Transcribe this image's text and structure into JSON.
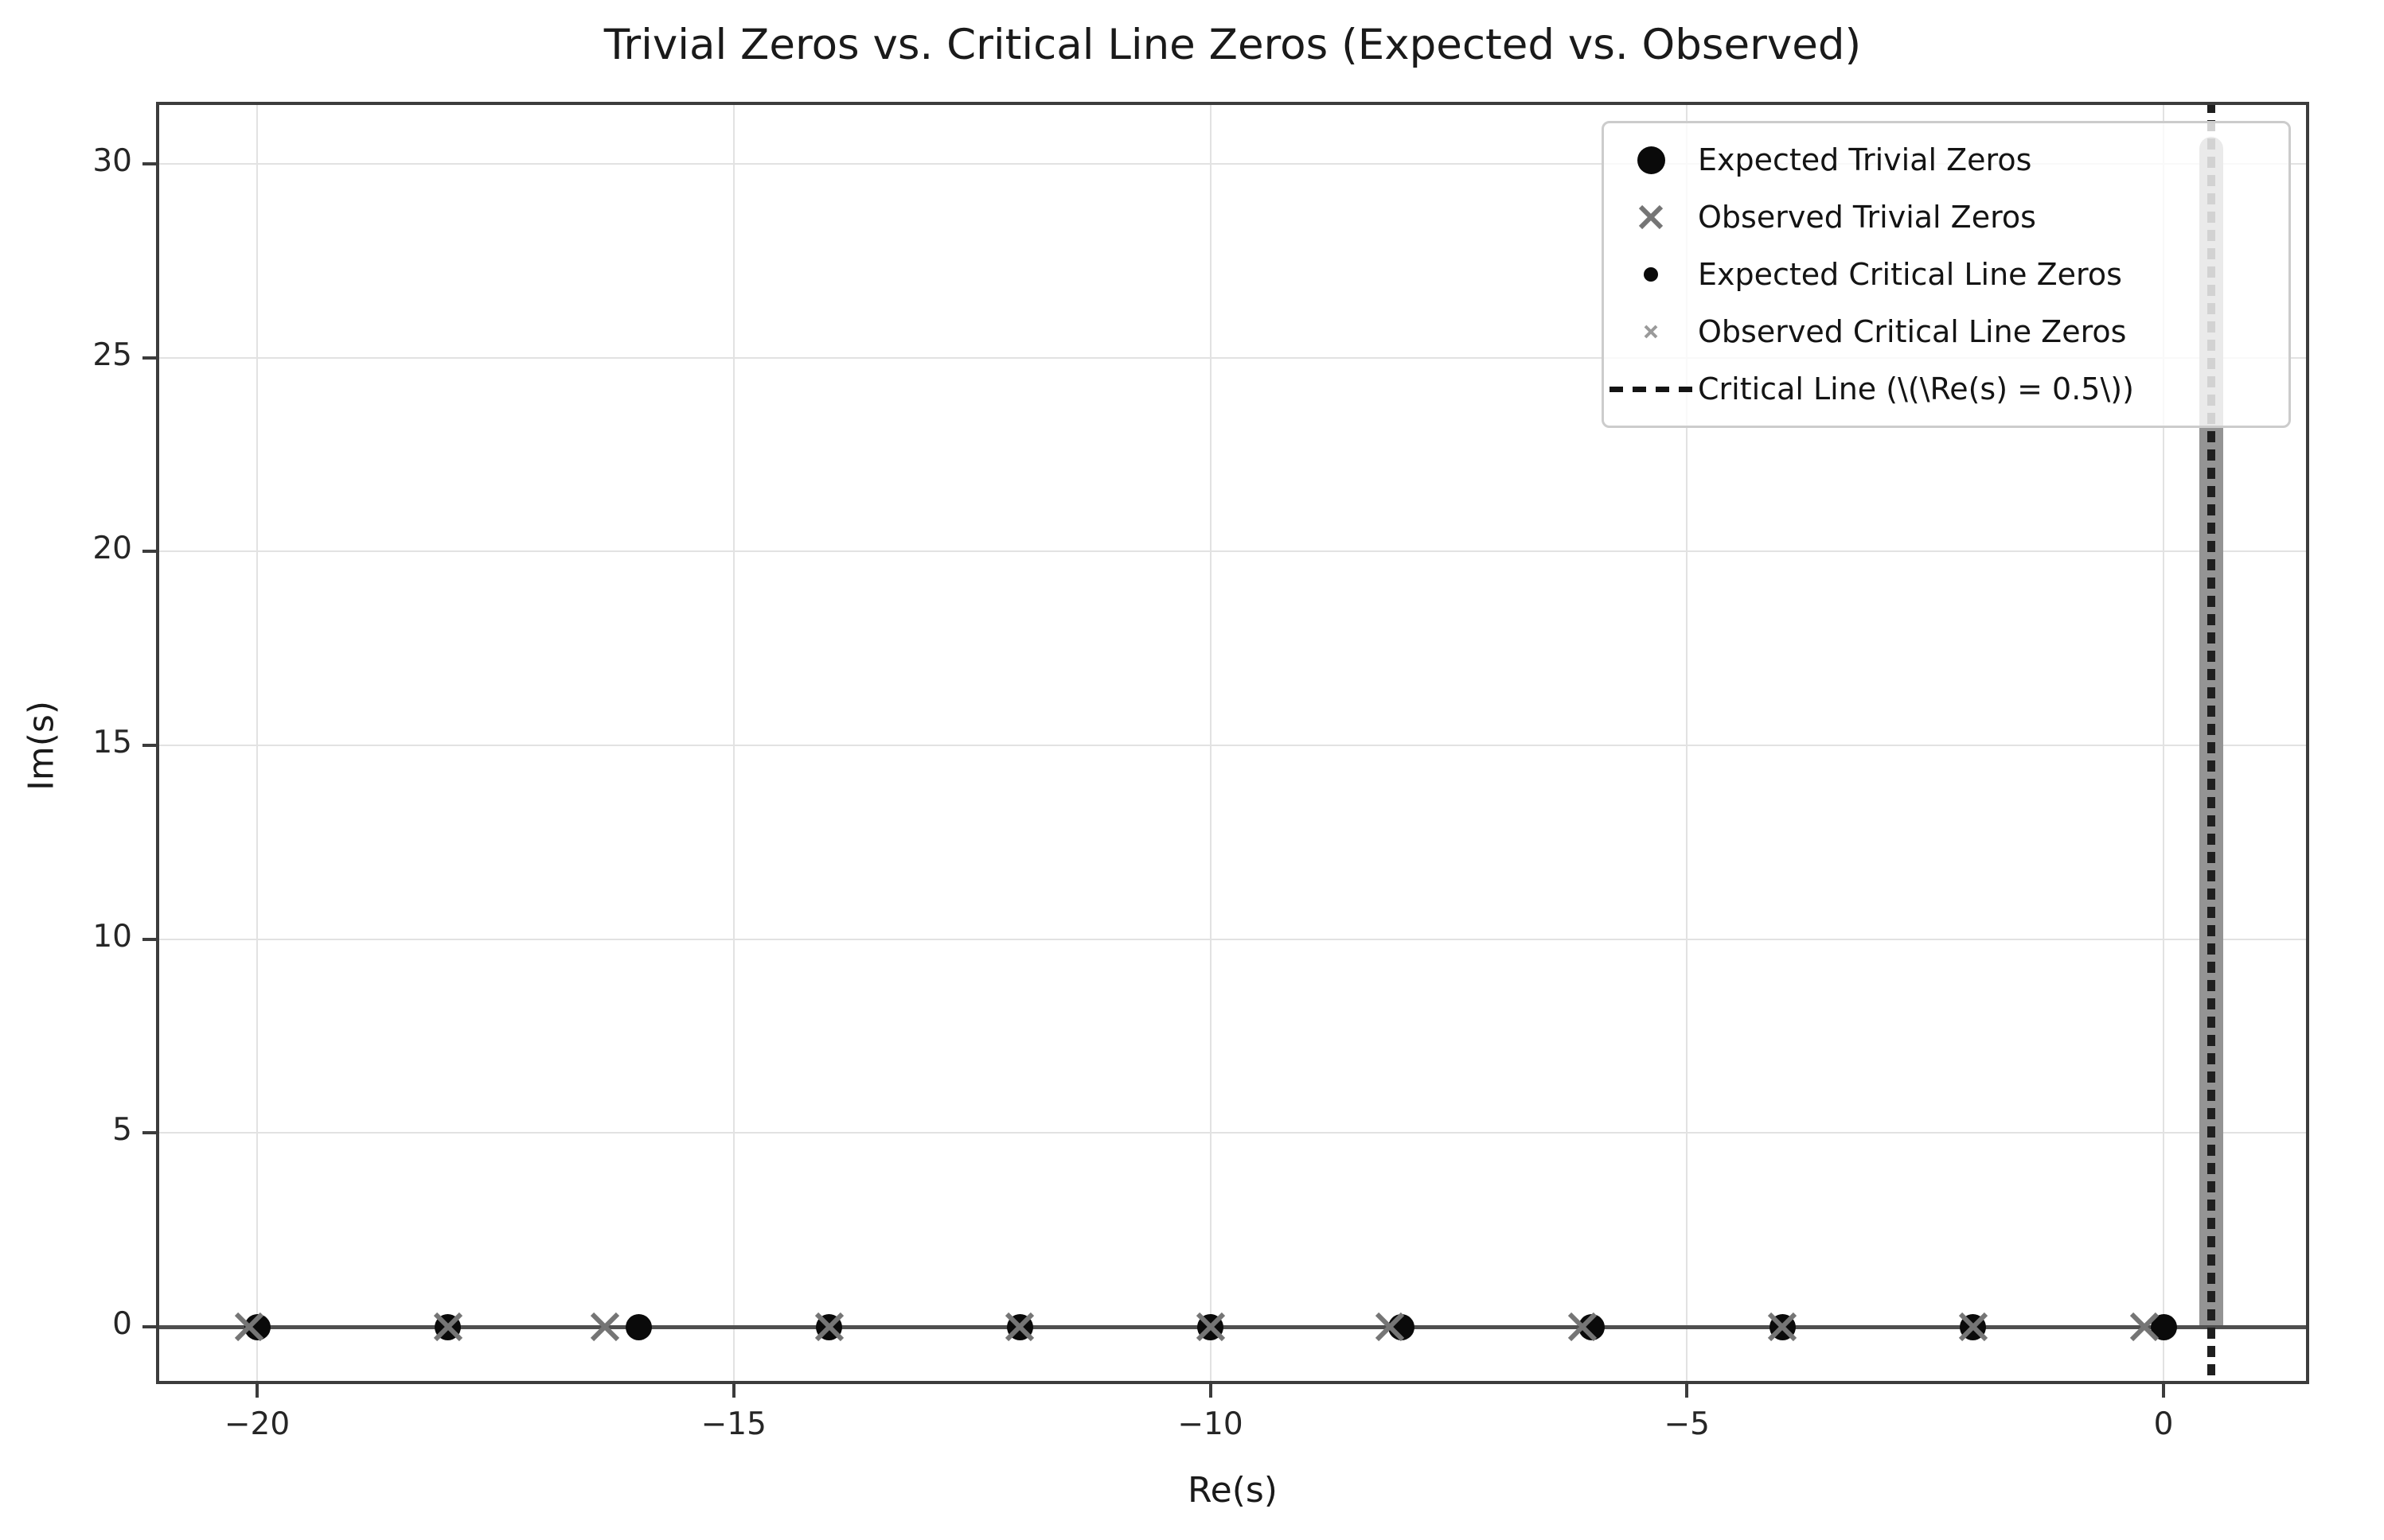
{
  "figure": {
    "title": "Trivial Zeros vs. Critical Line Zeros (Expected vs. Observed)",
    "xlabel": "Re(s)",
    "ylabel": "Im(s)"
  },
  "legend": {
    "items": [
      {
        "label": "Expected Trivial Zeros",
        "marker": "large-black-circle"
      },
      {
        "label": "Observed Trivial Zeros",
        "marker": "gray-x"
      },
      {
        "label": "Expected Critical Line Zeros",
        "marker": "small-black-dot"
      },
      {
        "label": "Observed Critical Line Zeros",
        "marker": "small-gray-x"
      },
      {
        "label": "Critical Line (\\(\\Re(s) = 0.5\\))",
        "marker": "black-dashed-line"
      }
    ]
  },
  "colors": {
    "background": "#ffffff",
    "text": "#1a1a1a",
    "spine": "#3c3c3c",
    "grid": "#e2e2e2",
    "zero_line": "#4f4f4f",
    "expected_marker": "#0a0a0a",
    "observed_marker": "#757575",
    "observed_small_marker": "#9a9a9a",
    "critical_band": "#949494",
    "critical_dash": "#1f1f1f",
    "legend_border": "#cccccc"
  },
  "chart_data": {
    "type": "scatter",
    "title": "Trivial Zeros vs. Critical Line Zeros (Expected vs. Observed)",
    "xlabel": "Re(s)",
    "ylabel": "Im(s)",
    "xlim": [
      -21.05,
      1.53
    ],
    "ylim": [
      -1.5,
      31.66
    ],
    "xticks": [
      -20,
      -15,
      -10,
      -5,
      0
    ],
    "yticks": [
      0,
      5,
      10,
      15,
      20,
      25,
      30
    ],
    "grid": true,
    "legend_position": "upper right",
    "series": [
      {
        "name": "Expected Trivial Zeros",
        "marker": "circle",
        "size": 33,
        "points": [
          [
            0,
            0
          ],
          [
            -2,
            0
          ],
          [
            -4,
            0
          ],
          [
            -6,
            0
          ],
          [
            -8,
            0
          ],
          [
            -10,
            0
          ],
          [
            -12,
            0
          ],
          [
            -14,
            0
          ],
          [
            -16,
            0
          ],
          [
            -18,
            0
          ],
          [
            -20,
            0
          ]
        ]
      },
      {
        "name": "Observed Trivial Zeros",
        "marker": "x",
        "size": 34,
        "points": [
          [
            -0.2,
            0
          ],
          [
            -2,
            0
          ],
          [
            -4,
            0
          ],
          [
            -6.1,
            0
          ],
          [
            -8.12,
            0
          ],
          [
            -10,
            0
          ],
          [
            -12,
            0
          ],
          [
            -14,
            0
          ],
          [
            -16.35,
            0
          ],
          [
            -18,
            0
          ],
          [
            -20.08,
            0
          ]
        ]
      },
      {
        "name": "Expected Critical Line Zeros",
        "marker": "dot",
        "size": 17,
        "band": {
          "re": 0.5,
          "im_min": 0,
          "im_max": 30.4,
          "appearance": "dense vertical cluster of points"
        }
      },
      {
        "name": "Observed Critical Line Zeros",
        "marker": "x-small",
        "size": 14,
        "band": {
          "re": 0.5,
          "im_min": 0,
          "im_max": 30.4,
          "appearance": "dense vertical cluster of points"
        }
      }
    ],
    "critical_line": {
      "re": 0.5,
      "style": "dashed"
    },
    "zero_line": {
      "im": 0
    }
  }
}
